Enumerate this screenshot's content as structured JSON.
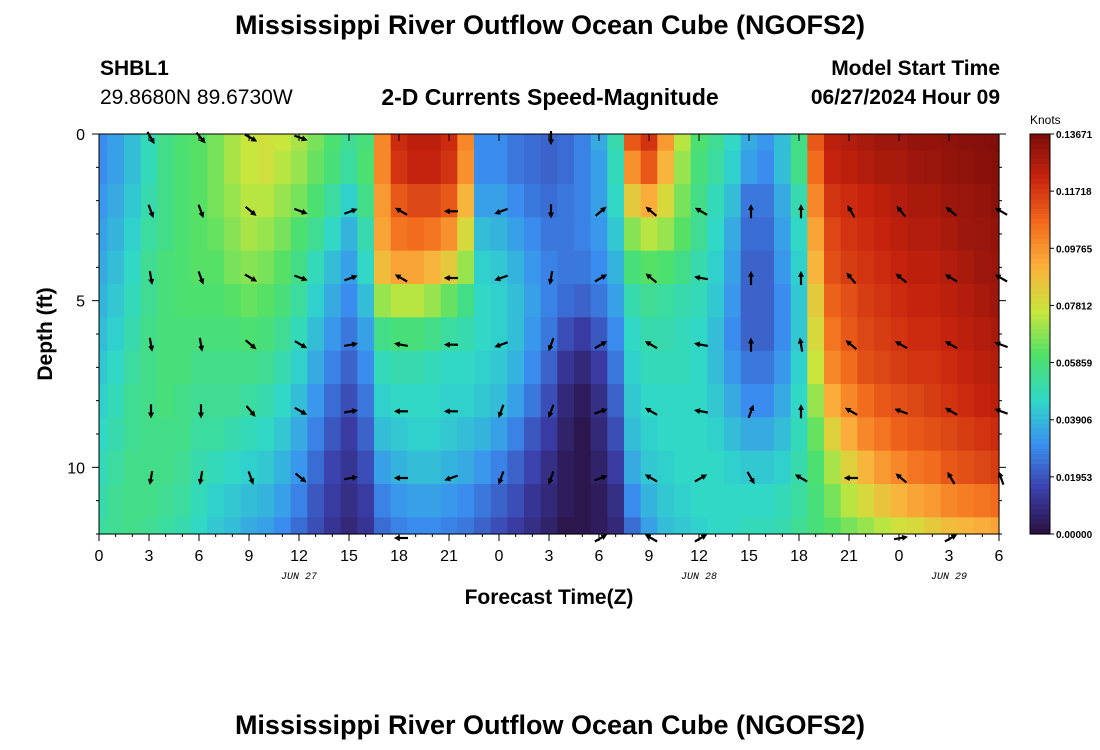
{
  "page": {
    "title": "Mississippi River Outflow Ocean Cube (NGOFS2)",
    "title_repeat": "Mississippi River Outflow Ocean Cube (NGOFS2)",
    "station": "SHBL1",
    "coords": "29.8680N  89.6730W",
    "subtitle": "2-D Currents Speed-Magnitude",
    "model_start_label": "Model Start Time",
    "model_start_value": "06/27/2024 Hour 09"
  },
  "chart_data": {
    "type": "heatmap",
    "title": "2-D Currents Speed-Magnitude",
    "xlabel": "Forecast Time(Z)",
    "ylabel": "Depth (ft)",
    "x_tick_labels": [
      "0",
      "3",
      "6",
      "9",
      "12",
      "15",
      "18",
      "21",
      "0",
      "3",
      "6",
      "9",
      "12",
      "15",
      "18",
      "21",
      "0",
      "3",
      "6"
    ],
    "x_hours": [
      0,
      3,
      6,
      9,
      12,
      15,
      18,
      21,
      24,
      27,
      30,
      33,
      36,
      39,
      42,
      45,
      48,
      51,
      54
    ],
    "x_range_hours": [
      0,
      54
    ],
    "date_labels": [
      {
        "hour": 12,
        "label": "JUN 27"
      },
      {
        "hour": 36,
        "label": "JUN 28"
      },
      {
        "hour": 51,
        "label": "JUN 29"
      }
    ],
    "y_ticks": [
      0,
      5,
      10
    ],
    "y_range_ft": [
      0,
      12
    ],
    "y_inverted": true,
    "colorbar": {
      "unit": "Knots",
      "min": 0.0,
      "max": 0.13671,
      "tick_labels": [
        "0.13671",
        "0.11718",
        "0.09765",
        "0.07812",
        "0.05859",
        "0.03906",
        "0.01953",
        "0.00000"
      ],
      "colormap": [
        "#2a1040",
        "#3b3faa",
        "#3a8ff0",
        "#2fd8c8",
        "#4de06a",
        "#c8e63c",
        "#fbb13c",
        "#f26a1c",
        "#c8240e",
        "#7c0d0a"
      ]
    },
    "speed_columns_hours": [
      0,
      1,
      2,
      3,
      4,
      5,
      6,
      7,
      8,
      9,
      10,
      11,
      12,
      13,
      14,
      15,
      16,
      17,
      18,
      19,
      20,
      21,
      22,
      23,
      24,
      25,
      26,
      27,
      28,
      29,
      30,
      31,
      32,
      33,
      34,
      35,
      36,
      37,
      38,
      39,
      40,
      41,
      42,
      43,
      44,
      45,
      46,
      47,
      48,
      49,
      50,
      51,
      52,
      53,
      54
    ],
    "speed_depth_rows_ft": [
      0,
      1,
      2,
      3,
      4,
      5,
      6,
      7,
      8,
      9,
      10,
      11,
      12
    ],
    "speed": [
      [
        0.03,
        0.034,
        0.04,
        0.048,
        0.056,
        0.06,
        0.062,
        0.066,
        0.072,
        0.076,
        0.078,
        0.076,
        0.072,
        0.066,
        0.06,
        0.054,
        0.058,
        0.1,
        0.12,
        0.124,
        0.124,
        0.12,
        0.1,
        0.03,
        0.03,
        0.026,
        0.024,
        0.022,
        0.024,
        0.028,
        0.036,
        0.05,
        0.11,
        0.118,
        0.096,
        0.074,
        0.06,
        0.054,
        0.046,
        0.036,
        0.032,
        0.04,
        0.056,
        0.11,
        0.124,
        0.126,
        0.128,
        0.13,
        0.13,
        0.132,
        0.132,
        0.133,
        0.134,
        0.135,
        0.136
      ],
      [
        0.03,
        0.034,
        0.04,
        0.048,
        0.056,
        0.06,
        0.062,
        0.066,
        0.072,
        0.076,
        0.078,
        0.074,
        0.07,
        0.064,
        0.058,
        0.052,
        0.06,
        0.1,
        0.118,
        0.122,
        0.122,
        0.118,
        0.098,
        0.03,
        0.03,
        0.026,
        0.024,
        0.022,
        0.024,
        0.028,
        0.034,
        0.048,
        0.098,
        0.11,
        0.09,
        0.07,
        0.058,
        0.052,
        0.044,
        0.034,
        0.03,
        0.04,
        0.056,
        0.106,
        0.122,
        0.124,
        0.126,
        0.128,
        0.128,
        0.13,
        0.131,
        0.132,
        0.133,
        0.134,
        0.135
      ],
      [
        0.032,
        0.036,
        0.042,
        0.05,
        0.056,
        0.06,
        0.062,
        0.066,
        0.07,
        0.074,
        0.074,
        0.07,
        0.066,
        0.06,
        0.052,
        0.044,
        0.056,
        0.096,
        0.11,
        0.114,
        0.114,
        0.11,
        0.09,
        0.034,
        0.034,
        0.03,
        0.026,
        0.024,
        0.026,
        0.028,
        0.034,
        0.046,
        0.084,
        0.092,
        0.08,
        0.066,
        0.056,
        0.048,
        0.04,
        0.026,
        0.026,
        0.036,
        0.05,
        0.1,
        0.118,
        0.12,
        0.122,
        0.124,
        0.126,
        0.128,
        0.128,
        0.13,
        0.131,
        0.132,
        0.134
      ],
      [
        0.034,
        0.038,
        0.044,
        0.052,
        0.056,
        0.06,
        0.062,
        0.064,
        0.068,
        0.072,
        0.07,
        0.066,
        0.06,
        0.054,
        0.046,
        0.038,
        0.05,
        0.094,
        0.104,
        0.106,
        0.104,
        0.098,
        0.08,
        0.04,
        0.038,
        0.034,
        0.03,
        0.026,
        0.026,
        0.028,
        0.032,
        0.042,
        0.068,
        0.074,
        0.07,
        0.062,
        0.054,
        0.046,
        0.036,
        0.024,
        0.024,
        0.034,
        0.046,
        0.094,
        0.114,
        0.118,
        0.12,
        0.122,
        0.124,
        0.126,
        0.126,
        0.128,
        0.13,
        0.131,
        0.132
      ],
      [
        0.036,
        0.04,
        0.046,
        0.054,
        0.058,
        0.06,
        0.062,
        0.062,
        0.066,
        0.068,
        0.066,
        0.062,
        0.056,
        0.048,
        0.04,
        0.034,
        0.046,
        0.088,
        0.094,
        0.094,
        0.09,
        0.084,
        0.07,
        0.044,
        0.042,
        0.038,
        0.032,
        0.028,
        0.026,
        0.026,
        0.03,
        0.038,
        0.058,
        0.062,
        0.06,
        0.056,
        0.05,
        0.044,
        0.034,
        0.022,
        0.022,
        0.032,
        0.044,
        0.09,
        0.112,
        0.116,
        0.118,
        0.12,
        0.122,
        0.124,
        0.124,
        0.126,
        0.128,
        0.13,
        0.131
      ],
      [
        0.038,
        0.042,
        0.048,
        0.054,
        0.058,
        0.06,
        0.06,
        0.06,
        0.062,
        0.064,
        0.062,
        0.058,
        0.052,
        0.044,
        0.036,
        0.03,
        0.04,
        0.07,
        0.074,
        0.074,
        0.07,
        0.064,
        0.056,
        0.046,
        0.044,
        0.04,
        0.034,
        0.028,
        0.024,
        0.022,
        0.026,
        0.034,
        0.05,
        0.054,
        0.052,
        0.05,
        0.048,
        0.042,
        0.032,
        0.022,
        0.022,
        0.03,
        0.042,
        0.084,
        0.108,
        0.112,
        0.116,
        0.118,
        0.12,
        0.122,
        0.122,
        0.124,
        0.126,
        0.128,
        0.13
      ],
      [
        0.04,
        0.044,
        0.05,
        0.056,
        0.058,
        0.058,
        0.058,
        0.058,
        0.058,
        0.06,
        0.058,
        0.054,
        0.048,
        0.04,
        0.032,
        0.026,
        0.034,
        0.056,
        0.058,
        0.058,
        0.056,
        0.052,
        0.05,
        0.046,
        0.044,
        0.04,
        0.032,
        0.026,
        0.018,
        0.014,
        0.02,
        0.03,
        0.046,
        0.05,
        0.05,
        0.048,
        0.046,
        0.04,
        0.03,
        0.022,
        0.022,
        0.03,
        0.042,
        0.08,
        0.104,
        0.11,
        0.114,
        0.116,
        0.118,
        0.12,
        0.12,
        0.122,
        0.124,
        0.126,
        0.128
      ],
      [
        0.042,
        0.046,
        0.052,
        0.056,
        0.058,
        0.058,
        0.056,
        0.056,
        0.056,
        0.056,
        0.054,
        0.05,
        0.044,
        0.036,
        0.028,
        0.022,
        0.03,
        0.048,
        0.05,
        0.05,
        0.048,
        0.046,
        0.046,
        0.044,
        0.042,
        0.038,
        0.03,
        0.022,
        0.012,
        0.008,
        0.014,
        0.026,
        0.044,
        0.048,
        0.048,
        0.048,
        0.046,
        0.04,
        0.032,
        0.026,
        0.026,
        0.032,
        0.044,
        0.076,
        0.1,
        0.106,
        0.112,
        0.114,
        0.116,
        0.118,
        0.118,
        0.12,
        0.122,
        0.124,
        0.126
      ],
      [
        0.044,
        0.048,
        0.054,
        0.056,
        0.058,
        0.056,
        0.054,
        0.054,
        0.054,
        0.052,
        0.05,
        0.046,
        0.04,
        0.032,
        0.024,
        0.018,
        0.026,
        0.044,
        0.046,
        0.046,
        0.046,
        0.044,
        0.044,
        0.042,
        0.04,
        0.034,
        0.026,
        0.018,
        0.008,
        0.004,
        0.01,
        0.022,
        0.042,
        0.046,
        0.046,
        0.046,
        0.046,
        0.042,
        0.036,
        0.03,
        0.03,
        0.036,
        0.046,
        0.07,
        0.092,
        0.1,
        0.106,
        0.11,
        0.112,
        0.114,
        0.116,
        0.118,
        0.12,
        0.122,
        0.124
      ],
      [
        0.046,
        0.05,
        0.054,
        0.056,
        0.056,
        0.056,
        0.052,
        0.052,
        0.05,
        0.048,
        0.046,
        0.042,
        0.036,
        0.028,
        0.02,
        0.014,
        0.022,
        0.04,
        0.042,
        0.044,
        0.044,
        0.042,
        0.04,
        0.038,
        0.034,
        0.028,
        0.02,
        0.014,
        0.006,
        0.002,
        0.008,
        0.018,
        0.04,
        0.044,
        0.046,
        0.046,
        0.046,
        0.044,
        0.04,
        0.036,
        0.036,
        0.04,
        0.048,
        0.064,
        0.082,
        0.092,
        0.1,
        0.104,
        0.108,
        0.11,
        0.112,
        0.114,
        0.116,
        0.118,
        0.12
      ],
      [
        0.048,
        0.052,
        0.056,
        0.056,
        0.056,
        0.054,
        0.05,
        0.048,
        0.046,
        0.044,
        0.042,
        0.038,
        0.032,
        0.024,
        0.016,
        0.012,
        0.018,
        0.034,
        0.038,
        0.04,
        0.04,
        0.038,
        0.036,
        0.032,
        0.028,
        0.022,
        0.016,
        0.01,
        0.004,
        0.002,
        0.006,
        0.014,
        0.036,
        0.042,
        0.044,
        0.046,
        0.046,
        0.046,
        0.044,
        0.042,
        0.042,
        0.044,
        0.05,
        0.06,
        0.072,
        0.082,
        0.09,
        0.096,
        0.1,
        0.104,
        0.106,
        0.11,
        0.112,
        0.114,
        0.116
      ],
      [
        0.05,
        0.054,
        0.056,
        0.056,
        0.054,
        0.052,
        0.048,
        0.044,
        0.042,
        0.04,
        0.038,
        0.034,
        0.028,
        0.02,
        0.014,
        0.01,
        0.014,
        0.028,
        0.032,
        0.034,
        0.034,
        0.032,
        0.03,
        0.026,
        0.022,
        0.018,
        0.012,
        0.008,
        0.004,
        0.002,
        0.004,
        0.01,
        0.03,
        0.038,
        0.042,
        0.044,
        0.046,
        0.046,
        0.046,
        0.046,
        0.046,
        0.048,
        0.052,
        0.058,
        0.066,
        0.074,
        0.08,
        0.086,
        0.09,
        0.094,
        0.096,
        0.1,
        0.102,
        0.104,
        0.106
      ],
      [
        0.052,
        0.054,
        0.056,
        0.054,
        0.052,
        0.05,
        0.046,
        0.042,
        0.04,
        0.036,
        0.034,
        0.03,
        0.024,
        0.018,
        0.012,
        0.008,
        0.012,
        0.024,
        0.028,
        0.03,
        0.03,
        0.028,
        0.026,
        0.022,
        0.018,
        0.014,
        0.01,
        0.006,
        0.002,
        0.002,
        0.004,
        0.008,
        0.024,
        0.034,
        0.04,
        0.042,
        0.044,
        0.046,
        0.046,
        0.048,
        0.048,
        0.05,
        0.054,
        0.058,
        0.062,
        0.066,
        0.07,
        0.074,
        0.078,
        0.08,
        0.084,
        0.088,
        0.09,
        0.092,
        0.094
      ]
    ],
    "arrow_depths_ft": [
      0,
      2.2,
      4.2,
      6.2,
      8.2,
      10.2,
      12
    ],
    "arrow_hours": [
      3,
      6,
      9,
      12,
      15,
      18,
      21,
      24,
      27,
      30,
      33,
      36,
      39,
      42,
      45,
      48,
      51,
      54
    ],
    "arrow_directions_deg": [
      [
        150,
        140,
        120,
        110,
        null,
        null,
        null,
        null,
        180,
        null,
        null,
        null,
        null,
        null,
        null,
        null,
        null,
        null
      ],
      [
        160,
        160,
        130,
        110,
        70,
        300,
        270,
        250,
        180,
        50,
        310,
        300,
        0,
        0,
        330,
        320,
        310,
        300
      ],
      [
        170,
        160,
        120,
        110,
        70,
        300,
        270,
        250,
        190,
        60,
        310,
        280,
        0,
        0,
        320,
        310,
        300,
        300
      ],
      [
        170,
        170,
        130,
        120,
        80,
        280,
        270,
        250,
        200,
        60,
        300,
        280,
        0,
        350,
        310,
        300,
        300,
        290
      ],
      [
        180,
        180,
        140,
        120,
        80,
        270,
        270,
        200,
        200,
        70,
        300,
        280,
        20,
        0,
        300,
        290,
        300,
        290
      ],
      [
        190,
        190,
        160,
        130,
        80,
        270,
        250,
        200,
        200,
        70,
        300,
        60,
        150,
        300,
        270,
        310,
        330,
        340
      ],
      [
        null,
        null,
        null,
        null,
        null,
        270,
        null,
        null,
        null,
        60,
        300,
        60,
        null,
        null,
        null,
        80,
        60,
        null
      ]
    ]
  }
}
